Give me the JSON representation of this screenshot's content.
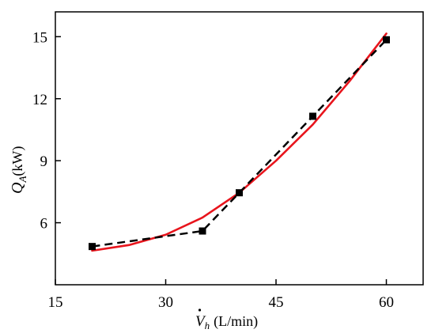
{
  "chart_data": {
    "type": "line",
    "x_ticks": [
      "15",
      "30",
      "45",
      "60"
    ],
    "y_ticks": [
      "6",
      "9",
      "12",
      "15"
    ],
    "xlim": [
      15,
      65
    ],
    "ylim": [
      3,
      16.2
    ],
    "xlabel": {
      "symbol": "V",
      "sub": "h",
      "unit": "(L/min)"
    },
    "ylabel": {
      "symbol": "Q",
      "sub": "A",
      "unit": "(kW)"
    },
    "series": [
      {
        "style": "dashed",
        "marker": "square",
        "color": "#000000",
        "x": [
          20,
          35,
          40,
          50,
          60
        ],
        "y": [
          4.85,
          5.6,
          7.45,
          11.15,
          14.85
        ]
      },
      {
        "style": "solid",
        "color": "#e8141c",
        "x": [
          20,
          25,
          30,
          35,
          40,
          45,
          50,
          55,
          60
        ],
        "y": [
          4.65,
          4.92,
          5.42,
          6.25,
          7.45,
          9.0,
          10.75,
          12.85,
          15.15
        ]
      }
    ],
    "grid": false,
    "legend": "none"
  }
}
